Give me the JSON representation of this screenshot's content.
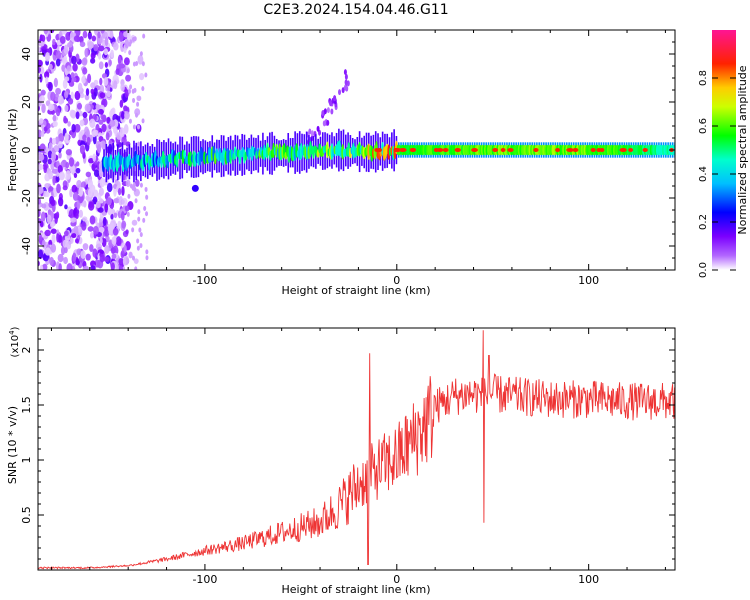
{
  "title": "C2E3.2024.154.04.46.G11",
  "chart_data": [
    {
      "type": "heatmap",
      "xlabel": "Height of straight line (km)",
      "ylabel": "Frequency (Hz)",
      "xlim": [
        -187,
        145
      ],
      "ylim": [
        -50,
        50
      ],
      "x_ticks": [
        -100,
        0,
        100
      ],
      "y_ticks": [
        -40,
        -20,
        0,
        20,
        40
      ],
      "colorbar": {
        "label": "Normalized spectral amplitude",
        "range": [
          0,
          1
        ],
        "ticks": [
          0.0,
          0.2,
          0.4,
          0.6,
          0.8
        ],
        "colormap": [
          "#ffffff",
          "#7b00ff",
          "#0000ff",
          "#00e5ff",
          "#00ff00",
          "#ffff00",
          "#ff0000",
          "#ff1493"
        ]
      },
      "band": {
        "x": [
          -153,
          -130,
          -110,
          -90,
          -70,
          -50,
          -30,
          -15,
          0,
          20,
          60,
          100,
          145
        ],
        "center_hz": [
          -5.5,
          -4.5,
          -3.0,
          -2.5,
          -1.5,
          -1.0,
          0.0,
          -1.0,
          0.0,
          0.0,
          0.0,
          0.0,
          0.0
        ],
        "amplitude": [
          0.4,
          0.45,
          0.5,
          0.55,
          0.55,
          0.6,
          0.6,
          0.75,
          0.8,
          0.85,
          0.9,
          0.9,
          0.7
        ]
      },
      "noise_region_x": [
        -187,
        -140
      ],
      "diagonal_feature": {
        "x": [
          -45,
          -25
        ],
        "y": [
          5,
          30
        ]
      }
    },
    {
      "type": "line",
      "xlabel": "Height of straight line (km)",
      "ylabel": "SNR (10 * v/v)",
      "y_exponent": "(x10",
      "y_exponent_power": "4",
      "y_exponent_close": ")",
      "xlim": [
        -187,
        145
      ],
      "ylim": [
        0,
        2.2
      ],
      "x_ticks": [
        -100,
        0,
        100
      ],
      "y_ticks": [
        0.5,
        1.0,
        1.5,
        2.0
      ],
      "color": "#ee3333",
      "series": [
        {
          "x": [
            -187,
            -160,
            -140,
            -120,
            -100,
            -80,
            -60,
            -40,
            -30,
            -20,
            -10,
            0,
            10,
            20,
            30,
            40,
            45,
            50,
            60,
            80,
            100,
            120,
            145
          ],
          "values": [
            0.02,
            0.02,
            0.04,
            0.1,
            0.18,
            0.25,
            0.35,
            0.45,
            0.6,
            0.8,
            0.95,
            1.05,
            1.25,
            1.5,
            1.6,
            1.62,
            1.6,
            1.62,
            1.6,
            1.57,
            1.57,
            1.55,
            1.55
          ]
        }
      ],
      "spikes": [
        {
          "x": -14,
          "y": 1.97
        },
        {
          "x": -15,
          "y": 0.05
        },
        {
          "x": 45,
          "y": 2.18
        },
        {
          "x": 45.5,
          "y": 0.43
        },
        {
          "x": 48,
          "y": 1.95
        }
      ]
    }
  ]
}
